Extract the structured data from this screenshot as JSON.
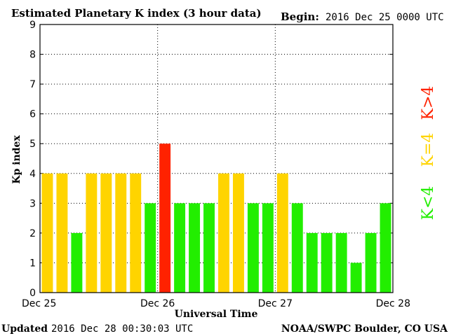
{
  "header": {
    "title": "Estimated Planetary K index (3 hour data)",
    "begin_label": "Begin:",
    "begin_value": "2016 Dec 25 0000 UTC"
  },
  "footer": {
    "updated_label": "Updated",
    "updated_value": "2016 Dec 28 00:30:03 UTC",
    "source": "NOAA/SWPC Boulder, CO USA"
  },
  "legend": {
    "low": "K<4",
    "mid": "K=4",
    "high": "K>4"
  },
  "colors": {
    "low": "#22ee00",
    "mid": "#ffd400",
    "high": "#ff2200",
    "grid": "#000000"
  },
  "chart_data": {
    "type": "bar",
    "xlabel": "Universal Time",
    "ylabel": "Kp index",
    "ylim": [
      0,
      9
    ],
    "yticks": [
      0,
      1,
      2,
      3,
      4,
      5,
      6,
      7,
      8,
      9
    ],
    "xtick_labels": [
      "Dec 25",
      "Dec 26",
      "Dec 27",
      "Dec 28"
    ],
    "grid": true,
    "values": [
      4,
      4,
      2,
      4,
      4,
      4,
      4,
      3,
      5,
      3,
      3,
      3,
      4,
      4,
      3,
      3,
      4,
      3,
      2,
      2,
      2,
      1,
      2,
      3
    ]
  }
}
